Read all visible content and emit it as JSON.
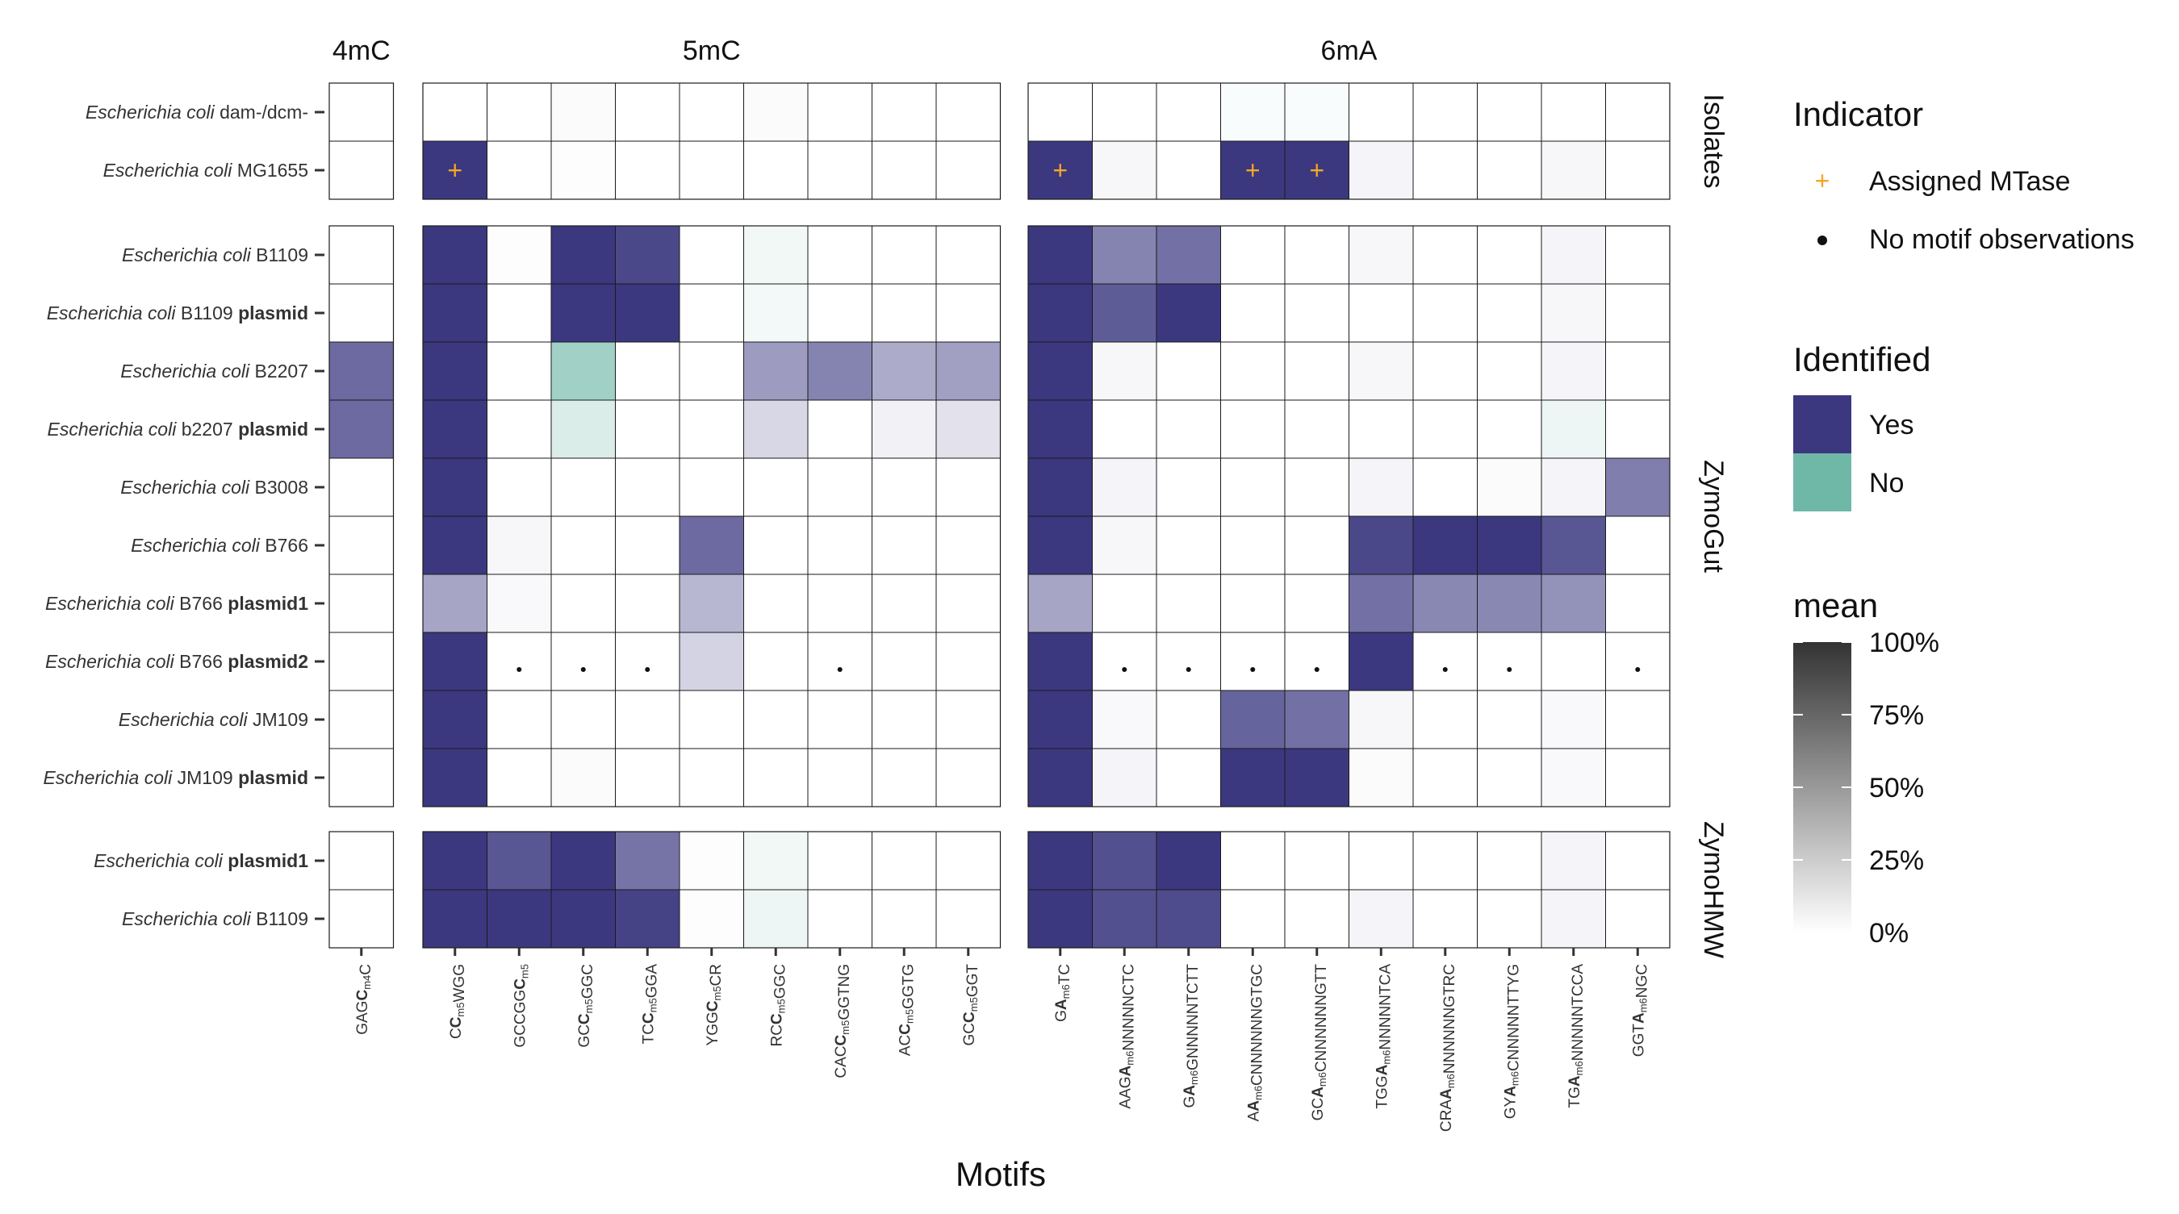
{
  "chart_data": {
    "type": "heatmap",
    "xlabel": "Motifs",
    "column_groups": [
      {
        "name": "4mC",
        "motifs": [
          "GAGCm4C"
        ]
      },
      {
        "name": "5mC",
        "motifs": [
          "CCm5WGG",
          "GCCGGCm5",
          "GCCm5GGC",
          "TCCm5GGA",
          "YGGCm5CR",
          "RCCm5GGC",
          "CACCm5GGTNG",
          "ACCm5GGTG",
          "GCCm5GGT"
        ]
      },
      {
        "name": "6mA",
        "motifs": [
          "GAm6TC",
          "AAGAm6NNNNNCTC",
          "GAm6GNNNNNTCTT",
          "AAm6CNNNNNNGTGC",
          "GCAm6CNNNNNNGTT",
          "TGGAm6NNNNNTCA",
          "CRAAm6NNNNNNGTRC",
          "GYAm6CNNNNNTTYG",
          "TGAm6NNNNNTCCA",
          "GGTAm6NGC"
        ]
      }
    ],
    "row_groups": [
      {
        "name": "Isolates",
        "rows": [
          {
            "label_italic": "Escherichia coli",
            "label_plain": " dam-/dcm-",
            "label_bold": ""
          },
          {
            "label_italic": "Escherichia coli",
            "label_plain": " MG1655",
            "label_bold": ""
          }
        ]
      },
      {
        "name": "ZymoGut",
        "rows": [
          {
            "label_italic": "Escherichia coli",
            "label_plain": " B1109",
            "label_bold": ""
          },
          {
            "label_italic": "Escherichia coli",
            "label_plain": " B1109 ",
            "label_bold": "plasmid"
          },
          {
            "label_italic": "Escherichia coli",
            "label_plain": " B2207",
            "label_bold": ""
          },
          {
            "label_italic": "Escherichia coli",
            "label_plain": " b2207 ",
            "label_bold": "plasmid"
          },
          {
            "label_italic": "Escherichia coli",
            "label_plain": " B3008",
            "label_bold": ""
          },
          {
            "label_italic": "Escherichia coli",
            "label_plain": " B766",
            "label_bold": ""
          },
          {
            "label_italic": "Escherichia coli",
            "label_plain": " B766 ",
            "label_bold": "plasmid1"
          },
          {
            "label_italic": "Escherichia coli",
            "label_plain": " B766 ",
            "label_bold": "plasmid2"
          },
          {
            "label_italic": "Escherichia coli",
            "label_plain": " JM109",
            "label_bold": ""
          },
          {
            "label_italic": "Escherichia coli",
            "label_plain": " JM109 ",
            "label_bold": "plasmid"
          }
        ]
      },
      {
        "name": "ZymoHMW",
        "rows": [
          {
            "label_italic": "Escherichia coli",
            "label_plain": "  ",
            "label_bold": "plasmid1"
          },
          {
            "label_italic": "Escherichia coli",
            "label_plain": " B1109",
            "label_bold": ""
          }
        ]
      }
    ],
    "values": [
      [
        0,
        0,
        0,
        0.02,
        0,
        0,
        0.02,
        0,
        0,
        0,
        0,
        0,
        0,
        0.04,
        0.04,
        0,
        0,
        0,
        0,
        0
      ],
      [
        0,
        1,
        0,
        0.01,
        0,
        0,
        0,
        0,
        0,
        0,
        1,
        0.04,
        0,
        1,
        1,
        0.05,
        0,
        0,
        0.04,
        0
      ],
      [
        0,
        1,
        0.01,
        1,
        0.92,
        0,
        0.1,
        0,
        0,
        0,
        1,
        0.62,
        0.72,
        0,
        0,
        0.04,
        0,
        0,
        0.05,
        0
      ],
      [
        0,
        1,
        0,
        1,
        1,
        0,
        0.08,
        0,
        0,
        0,
        1,
        0.82,
        1,
        0,
        0,
        0,
        0,
        0,
        0.04,
        0
      ],
      [
        0.75,
        1,
        0,
        0.65,
        0,
        0,
        0.5,
        0.62,
        0.42,
        0.48,
        1,
        0.04,
        0,
        0,
        0,
        0.04,
        0,
        0,
        0.05,
        0
      ],
      [
        0.75,
        1,
        0,
        0.25,
        0,
        0,
        0.2,
        0,
        0.07,
        0.15,
        1,
        0,
        0,
        0,
        0,
        0,
        0,
        0,
        0.12,
        0
      ],
      [
        0,
        1,
        0,
        0,
        0,
        0,
        0,
        0,
        0,
        0,
        1,
        0.05,
        0,
        0,
        0,
        0.05,
        0,
        0.02,
        0.05,
        0.65
      ],
      [
        0,
        1,
        0.04,
        0,
        0,
        0.75,
        0,
        0,
        0,
        0,
        1,
        0.04,
        0,
        0,
        0,
        0.92,
        1,
        1,
        0.85,
        0
      ],
      [
        0,
        0.45,
        0.03,
        0,
        0,
        0.36,
        0,
        0,
        0,
        0,
        0.45,
        0,
        0,
        0,
        0,
        0.72,
        0.6,
        0.6,
        0.55,
        0
      ],
      [
        0,
        1,
        0,
        0,
        0,
        0.22,
        0,
        0,
        0,
        0,
        1,
        0,
        0,
        0,
        0,
        1,
        0,
        0,
        0,
        0
      ],
      [
        0,
        1,
        0,
        0,
        0,
        0,
        0,
        0,
        0,
        0,
        1,
        0.03,
        0,
        0.78,
        0.72,
        0.04,
        0,
        0,
        0.03,
        0
      ],
      [
        0,
        1,
        0,
        0.02,
        0,
        0,
        0,
        0,
        0,
        0,
        1,
        0.05,
        0,
        1,
        1,
        0.02,
        0,
        0,
        0.03,
        0
      ],
      [
        0,
        1,
        0.85,
        1,
        0.7,
        0.01,
        0.1,
        0,
        0,
        0,
        1,
        0.88,
        1,
        0,
        0,
        0,
        0,
        0,
        0.05,
        0
      ],
      [
        0,
        1,
        1,
        1,
        0.95,
        0.01,
        0.12,
        0,
        0,
        0,
        1,
        0.88,
        0.9,
        0,
        0,
        0.05,
        0,
        0,
        0.05,
        0
      ]
    ],
    "identified": [
      [
        "Yes",
        "Yes",
        "Yes",
        "Yes",
        "Yes",
        "Yes",
        "Yes",
        "Yes",
        "Yes",
        "Yes",
        "Yes",
        "Yes",
        "Yes",
        "No",
        "No",
        "Yes",
        "Yes",
        "Yes",
        "Yes",
        "Yes"
      ],
      [
        "Yes",
        "Yes",
        "Yes",
        "Yes",
        "Yes",
        "Yes",
        "Yes",
        "Yes",
        "Yes",
        "Yes",
        "Yes",
        "Yes",
        "Yes",
        "Yes",
        "Yes",
        "Yes",
        "Yes",
        "Yes",
        "Yes",
        "Yes"
      ],
      [
        "Yes",
        "Yes",
        "Yes",
        "Yes",
        "Yes",
        "Yes",
        "No",
        "Yes",
        "Yes",
        "Yes",
        "Yes",
        "Yes",
        "Yes",
        "Yes",
        "Yes",
        "Yes",
        "Yes",
        "Yes",
        "Yes",
        "Yes"
      ],
      [
        "Yes",
        "Yes",
        "Yes",
        "Yes",
        "Yes",
        "Yes",
        "No",
        "Yes",
        "Yes",
        "Yes",
        "Yes",
        "Yes",
        "Yes",
        "Yes",
        "Yes",
        "Yes",
        "Yes",
        "Yes",
        "Yes",
        "Yes"
      ],
      [
        "Yes",
        "Yes",
        "Yes",
        "No",
        "Yes",
        "Yes",
        "Yes",
        "Yes",
        "Yes",
        "Yes",
        "Yes",
        "Yes",
        "Yes",
        "Yes",
        "Yes",
        "Yes",
        "Yes",
        "Yes",
        "Yes",
        "Yes"
      ],
      [
        "Yes",
        "Yes",
        "Yes",
        "No",
        "Yes",
        "Yes",
        "Yes",
        "Yes",
        "Yes",
        "Yes",
        "Yes",
        "Yes",
        "Yes",
        "Yes",
        "Yes",
        "Yes",
        "Yes",
        "Yes",
        "No",
        "Yes"
      ],
      [
        "Yes",
        "Yes",
        "Yes",
        "Yes",
        "Yes",
        "Yes",
        "Yes",
        "Yes",
        "Yes",
        "Yes",
        "Yes",
        "Yes",
        "Yes",
        "Yes",
        "Yes",
        "Yes",
        "Yes",
        "Yes",
        "Yes",
        "Yes"
      ],
      [
        "Yes",
        "Yes",
        "Yes",
        "Yes",
        "Yes",
        "Yes",
        "Yes",
        "Yes",
        "Yes",
        "Yes",
        "Yes",
        "Yes",
        "Yes",
        "Yes",
        "Yes",
        "Yes",
        "Yes",
        "Yes",
        "Yes",
        "Yes"
      ],
      [
        "Yes",
        "Yes",
        "Yes",
        "Yes",
        "Yes",
        "Yes",
        "Yes",
        "Yes",
        "Yes",
        "Yes",
        "Yes",
        "Yes",
        "Yes",
        "Yes",
        "Yes",
        "Yes",
        "Yes",
        "Yes",
        "Yes",
        "Yes"
      ],
      [
        "Yes",
        "Yes",
        "Yes",
        "Yes",
        "Yes",
        "Yes",
        "Yes",
        "Yes",
        "Yes",
        "Yes",
        "Yes",
        "Yes",
        "Yes",
        "Yes",
        "Yes",
        "Yes",
        "Yes",
        "Yes",
        "Yes",
        "Yes"
      ],
      [
        "Yes",
        "Yes",
        "Yes",
        "Yes",
        "Yes",
        "Yes",
        "Yes",
        "Yes",
        "Yes",
        "Yes",
        "Yes",
        "Yes",
        "Yes",
        "Yes",
        "Yes",
        "Yes",
        "Yes",
        "Yes",
        "Yes",
        "Yes"
      ],
      [
        "Yes",
        "Yes",
        "Yes",
        "Yes",
        "Yes",
        "Yes",
        "Yes",
        "Yes",
        "Yes",
        "Yes",
        "Yes",
        "Yes",
        "Yes",
        "Yes",
        "Yes",
        "Yes",
        "Yes",
        "Yes",
        "Yes",
        "Yes"
      ],
      [
        "Yes",
        "Yes",
        "Yes",
        "Yes",
        "Yes",
        "Yes",
        "No",
        "Yes",
        "Yes",
        "Yes",
        "Yes",
        "Yes",
        "Yes",
        "Yes",
        "Yes",
        "Yes",
        "Yes",
        "Yes",
        "Yes",
        "Yes"
      ],
      [
        "Yes",
        "Yes",
        "Yes",
        "Yes",
        "Yes",
        "Yes",
        "No",
        "Yes",
        "Yes",
        "Yes",
        "Yes",
        "Yes",
        "Yes",
        "Yes",
        "Yes",
        "Yes",
        "Yes",
        "Yes",
        "Yes",
        "Yes"
      ]
    ],
    "assigned_mtase": [
      [
        1,
        1
      ],
      [
        1,
        10
      ],
      [
        1,
        13
      ],
      [
        1,
        14
      ]
    ],
    "no_motif_observations": [
      [
        9,
        2
      ],
      [
        9,
        3
      ],
      [
        9,
        4
      ],
      [
        9,
        7
      ],
      [
        9,
        11
      ],
      [
        9,
        12
      ],
      [
        9,
        13
      ],
      [
        9,
        14
      ],
      [
        9,
        16
      ],
      [
        9,
        17
      ],
      [
        9,
        19
      ]
    ],
    "colors": {
      "yes": "#3b3880",
      "no": "#6fb8a8",
      "mtase_marker": "#f5a623",
      "grid": "#1a1a1a"
    },
    "legend": {
      "placement": "right",
      "indicator": {
        "title": "Indicator",
        "items": [
          {
            "symbol": "+",
            "label": "Assigned MTase"
          },
          {
            "symbol": "dot",
            "label": "No motif observations"
          }
        ]
      },
      "identified": {
        "title": "Identified",
        "items": [
          {
            "label": "Yes",
            "color": "#3b3880"
          },
          {
            "label": "No",
            "color": "#6fb8a8"
          }
        ]
      },
      "mean": {
        "title": "mean",
        "ticks": [
          "100%",
          "75%",
          "50%",
          "25%",
          "0%"
        ]
      }
    }
  }
}
